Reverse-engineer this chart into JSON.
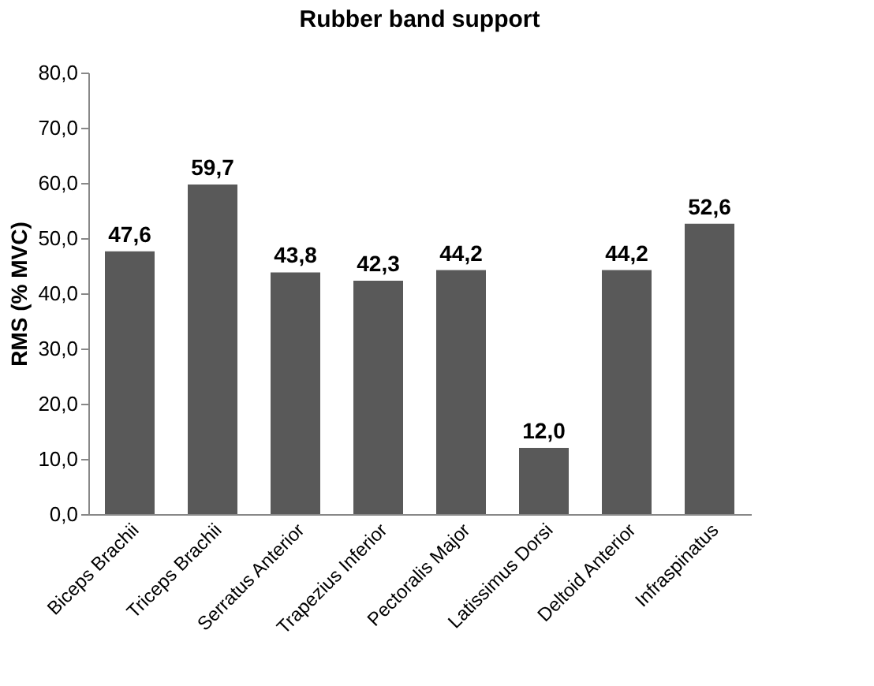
{
  "chart_data": {
    "type": "bar",
    "title": "Rubber band support",
    "ylabel": "RMS (% MVC)",
    "categories": [
      "Biceps Brachii",
      "Triceps Brachii",
      "Serratus Anterior",
      "Trapezius Inferior",
      "Pectoralis Major",
      "Latissimus Dorsi",
      "Deltoid Anterior",
      "Infraspinatus"
    ],
    "values": [
      47.6,
      59.7,
      43.8,
      42.3,
      44.2,
      12.0,
      44.2,
      52.6
    ],
    "value_labels": [
      "47,6",
      "59,7",
      "43,8",
      "42,3",
      "44,2",
      "12,0",
      "44,2",
      "52,6"
    ],
    "color": "#595959",
    "ylim": [
      0,
      80
    ],
    "yticks": [
      {
        "value": 0,
        "label": "0,0"
      },
      {
        "value": 10,
        "label": "10,0"
      },
      {
        "value": 20,
        "label": "20,0"
      },
      {
        "value": 30,
        "label": "30,0"
      },
      {
        "value": 40,
        "label": "40,0"
      },
      {
        "value": 50,
        "label": "50,0"
      },
      {
        "value": 60,
        "label": "60,0"
      },
      {
        "value": 70,
        "label": "70,0"
      },
      {
        "value": 80,
        "label": "80,0"
      }
    ],
    "grid": false
  }
}
